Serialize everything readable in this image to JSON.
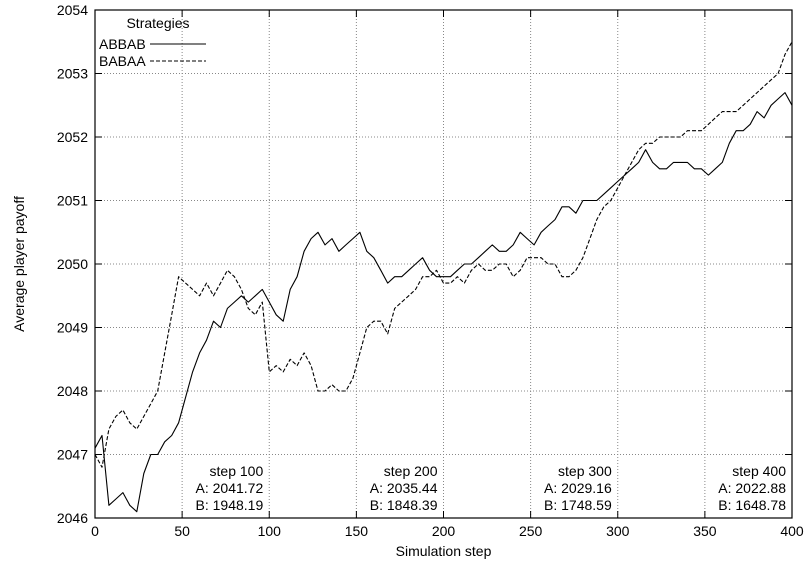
{
  "chart_data": {
    "type": "line",
    "title": "",
    "xlabel": "Simulation step",
    "ylabel": "Average player payoff",
    "xlim": [
      0,
      400
    ],
    "ylim": [
      2046,
      2054
    ],
    "xticks": [
      0,
      50,
      100,
      150,
      200,
      250,
      300,
      350,
      400
    ],
    "yticks": [
      2046,
      2047,
      2048,
      2049,
      2050,
      2051,
      2052,
      2053,
      2054
    ],
    "grid": true,
    "legend": {
      "title": "Strategies",
      "placement": "top-left",
      "entries": [
        {
          "name": "ABBAB",
          "style": "solid"
        },
        {
          "name": "BABAA",
          "style": "dashed"
        }
      ]
    },
    "series": [
      {
        "name": "ABBAB",
        "style": "solid",
        "x": [
          0,
          4,
          8,
          12,
          16,
          20,
          24,
          28,
          32,
          36,
          40,
          44,
          48,
          52,
          56,
          60,
          64,
          68,
          72,
          76,
          80,
          84,
          88,
          92,
          96,
          100,
          104,
          108,
          112,
          116,
          120,
          124,
          128,
          132,
          136,
          140,
          144,
          148,
          152,
          156,
          160,
          164,
          168,
          172,
          176,
          180,
          184,
          188,
          192,
          196,
          200,
          204,
          208,
          212,
          216,
          220,
          224,
          228,
          232,
          236,
          240,
          244,
          248,
          252,
          256,
          260,
          264,
          268,
          272,
          276,
          280,
          284,
          288,
          292,
          296,
          300,
          304,
          308,
          312,
          316,
          320,
          324,
          328,
          332,
          336,
          340,
          344,
          348,
          352,
          356,
          360,
          364,
          368,
          372,
          376,
          380,
          384,
          388,
          392,
          396,
          400
        ],
        "y": [
          2047.1,
          2047.3,
          2046.2,
          2046.3,
          2046.4,
          2046.2,
          2046.1,
          2046.7,
          2047.0,
          2047.0,
          2047.2,
          2047.3,
          2047.5,
          2047.9,
          2048.3,
          2048.6,
          2048.8,
          2049.1,
          2049.0,
          2049.3,
          2049.4,
          2049.5,
          2049.4,
          2049.5,
          2049.6,
          2049.4,
          2049.2,
          2049.1,
          2049.6,
          2049.8,
          2050.2,
          2050.4,
          2050.5,
          2050.3,
          2050.4,
          2050.2,
          2050.3,
          2050.4,
          2050.5,
          2050.2,
          2050.1,
          2049.9,
          2049.7,
          2049.8,
          2049.8,
          2049.9,
          2050.0,
          2050.1,
          2049.9,
          2049.8,
          2049.8,
          2049.8,
          2049.9,
          2050.0,
          2050.0,
          2050.1,
          2050.2,
          2050.3,
          2050.2,
          2050.2,
          2050.3,
          2050.5,
          2050.4,
          2050.3,
          2050.5,
          2050.6,
          2050.7,
          2050.9,
          2050.9,
          2050.8,
          2051.0,
          2051.0,
          2051.0,
          2051.1,
          2051.2,
          2051.3,
          2051.4,
          2051.5,
          2051.6,
          2051.8,
          2051.6,
          2051.5,
          2051.5,
          2051.6,
          2051.6,
          2051.6,
          2051.5,
          2051.5,
          2051.4,
          2051.5,
          2051.6,
          2051.9,
          2052.1,
          2052.1,
          2052.2,
          2052.4,
          2052.3,
          2052.5,
          2052.6,
          2052.7,
          2052.5
        ]
      },
      {
        "name": "BABAA",
        "style": "dashed",
        "x": [
          0,
          4,
          8,
          12,
          16,
          20,
          24,
          28,
          32,
          36,
          40,
          44,
          48,
          52,
          56,
          60,
          64,
          68,
          72,
          76,
          80,
          84,
          88,
          92,
          96,
          100,
          104,
          108,
          112,
          116,
          120,
          124,
          128,
          132,
          136,
          140,
          144,
          148,
          152,
          156,
          160,
          164,
          168,
          172,
          176,
          180,
          184,
          188,
          192,
          196,
          200,
          204,
          208,
          212,
          216,
          220,
          224,
          228,
          232,
          236,
          240,
          244,
          248,
          252,
          256,
          260,
          264,
          268,
          272,
          276,
          280,
          284,
          288,
          292,
          296,
          300,
          304,
          308,
          312,
          316,
          320,
          324,
          328,
          332,
          336,
          340,
          344,
          348,
          352,
          356,
          360,
          364,
          368,
          372,
          376,
          380,
          384,
          388,
          392,
          396,
          400
        ],
        "y": [
          2047.0,
          2046.8,
          2047.4,
          2047.6,
          2047.7,
          2047.5,
          2047.4,
          2047.6,
          2047.8,
          2048.0,
          2048.6,
          2049.2,
          2049.8,
          2049.7,
          2049.6,
          2049.5,
          2049.7,
          2049.5,
          2049.7,
          2049.9,
          2049.8,
          2049.6,
          2049.3,
          2049.2,
          2049.4,
          2048.3,
          2048.4,
          2048.3,
          2048.5,
          2048.4,
          2048.6,
          2048.4,
          2048.0,
          2048.0,
          2048.1,
          2048.0,
          2048.0,
          2048.2,
          2048.6,
          2049.0,
          2049.1,
          2049.1,
          2048.9,
          2049.3,
          2049.4,
          2049.5,
          2049.6,
          2049.8,
          2049.8,
          2049.9,
          2049.7,
          2049.7,
          2049.8,
          2049.7,
          2049.9,
          2050.0,
          2049.9,
          2049.9,
          2050.0,
          2050.0,
          2049.8,
          2049.9,
          2050.1,
          2050.1,
          2050.1,
          2050.0,
          2050.0,
          2049.8,
          2049.8,
          2049.9,
          2050.1,
          2050.4,
          2050.7,
          2050.9,
          2051.0,
          2051.2,
          2051.4,
          2051.6,
          2051.8,
          2051.9,
          2051.9,
          2052.0,
          2052.0,
          2052.0,
          2052.0,
          2052.1,
          2052.1,
          2052.1,
          2052.2,
          2052.3,
          2052.4,
          2052.4,
          2052.4,
          2052.5,
          2052.6,
          2052.7,
          2052.8,
          2052.9,
          2053.0,
          2053.3,
          2053.5
        ]
      }
    ],
    "annotations": [
      {
        "x": 100,
        "lines": [
          "step 100",
          "A: 2041.72",
          "B: 1948.19"
        ]
      },
      {
        "x": 200,
        "lines": [
          "step 200",
          "A: 2035.44",
          "B: 1848.39"
        ]
      },
      {
        "x": 300,
        "lines": [
          "step 300",
          "A: 2029.16",
          "B: 1748.59"
        ]
      },
      {
        "x": 400,
        "lines": [
          "step 400",
          "A: 2022.88",
          "B: 1648.78"
        ]
      }
    ]
  }
}
